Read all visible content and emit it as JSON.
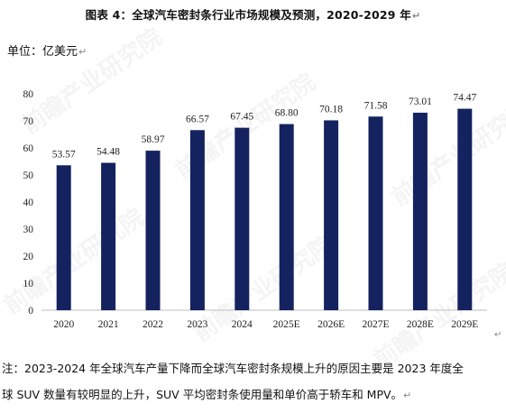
{
  "figure": {
    "title": "图表  4：全球汽车密封条行业市场规模及预测，2020-2029 年",
    "unit": "单位：亿美元",
    "note_line1": "注：2023-2024 年全球汽车产量下降而全球汽车密封条规模上升的原因主要是 2023 年度全",
    "note_line2": "球 SUV 数量有较明显的上升，SUV 平均密封条使用量和单价高于轿车和 MPV。",
    "para_mark": "↵",
    "watermark": "前瞻产业研究院"
  },
  "chart_data": {
    "type": "bar",
    "categories": [
      "2020",
      "2021",
      "2022",
      "2023",
      "2024",
      "2025E",
      "2026E",
      "2027E",
      "2028E",
      "2029E"
    ],
    "values": [
      53.57,
      54.48,
      58.97,
      66.57,
      67.45,
      68.8,
      70.18,
      71.58,
      73.01,
      74.47
    ],
    "value_labels": [
      "53.57",
      "54.48",
      "58.97",
      "66.57",
      "67.45",
      "68.80",
      "70.18",
      "71.58",
      "73.01",
      "74.47"
    ],
    "ylim": [
      0,
      80
    ],
    "yticks": [
      0,
      10,
      20,
      30,
      40,
      50,
      60,
      70,
      80
    ],
    "bar_color": "#14225f",
    "grid": false,
    "legend": "none"
  }
}
